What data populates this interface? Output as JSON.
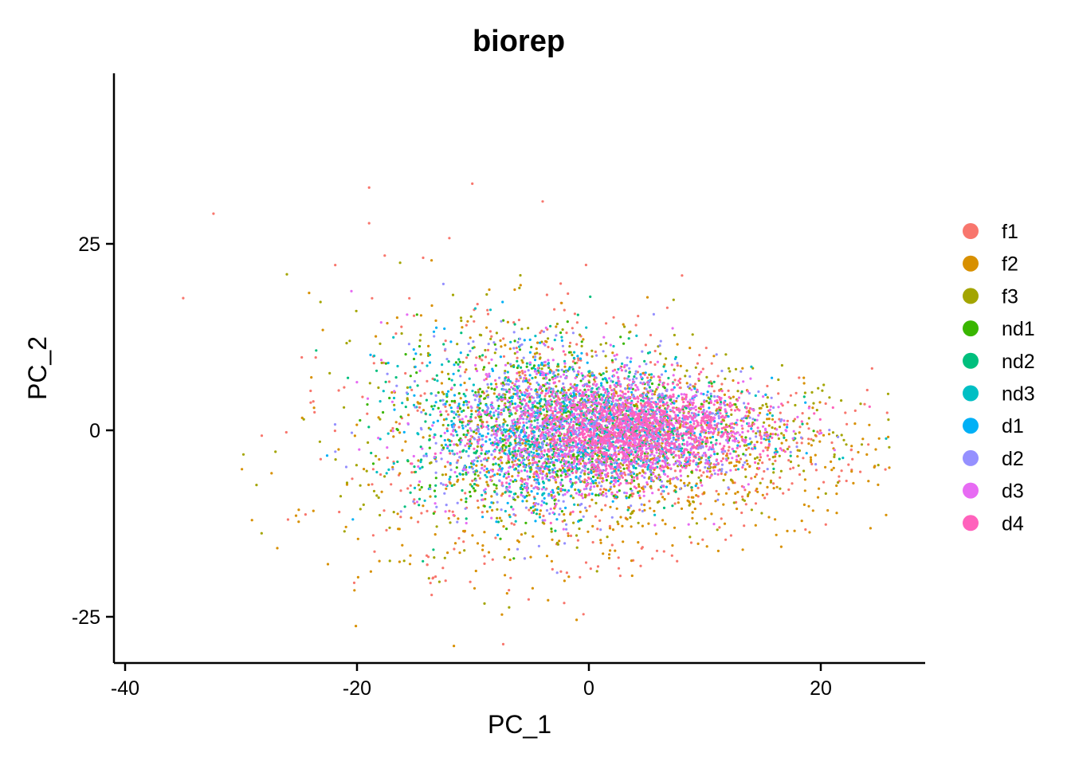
{
  "chart_data": {
    "type": "scatter",
    "title": "biorep",
    "xlabel": "PC_1",
    "ylabel": "PC_2",
    "xlim": [
      -41,
      29
    ],
    "ylim": [
      -31,
      48
    ],
    "xticks": [
      -40,
      -20,
      0,
      20
    ],
    "yticks": [
      -25,
      0,
      25
    ],
    "grid": false,
    "legend": "right",
    "series": [
      {
        "name": "f1",
        "color": "#F8766D",
        "center": [
          0,
          -2
        ],
        "spread": [
          11,
          9
        ],
        "count": 700
      },
      {
        "name": "f2",
        "color": "#D89000",
        "center": [
          2,
          -3
        ],
        "spread": [
          11,
          8
        ],
        "count": 700
      },
      {
        "name": "f3",
        "color": "#A3A500",
        "center": [
          1,
          0
        ],
        "spread": [
          10,
          7
        ],
        "count": 650
      },
      {
        "name": "nd1",
        "color": "#39B600",
        "center": [
          -2,
          0
        ],
        "spread": [
          7,
          5
        ],
        "count": 450
      },
      {
        "name": "nd2",
        "color": "#00BF7D",
        "center": [
          -2,
          0
        ],
        "spread": [
          7,
          5
        ],
        "count": 450
      },
      {
        "name": "nd3",
        "color": "#00BFC4",
        "center": [
          -2,
          0
        ],
        "spread": [
          7,
          5
        ],
        "count": 400
      },
      {
        "name": "d1",
        "color": "#00B0F6",
        "center": [
          -1,
          0
        ],
        "spread": [
          7,
          5
        ],
        "count": 500
      },
      {
        "name": "d2",
        "color": "#9590FF",
        "center": [
          0,
          0
        ],
        "spread": [
          7,
          5
        ],
        "count": 900
      },
      {
        "name": "d3",
        "color": "#E76BF3",
        "center": [
          1,
          0
        ],
        "spread": [
          7,
          4.5
        ],
        "count": 900
      },
      {
        "name": "d4",
        "color": "#FF62BC",
        "center": [
          3,
          0
        ],
        "spread": [
          5.5,
          3.2
        ],
        "count": 1200
      }
    ]
  }
}
